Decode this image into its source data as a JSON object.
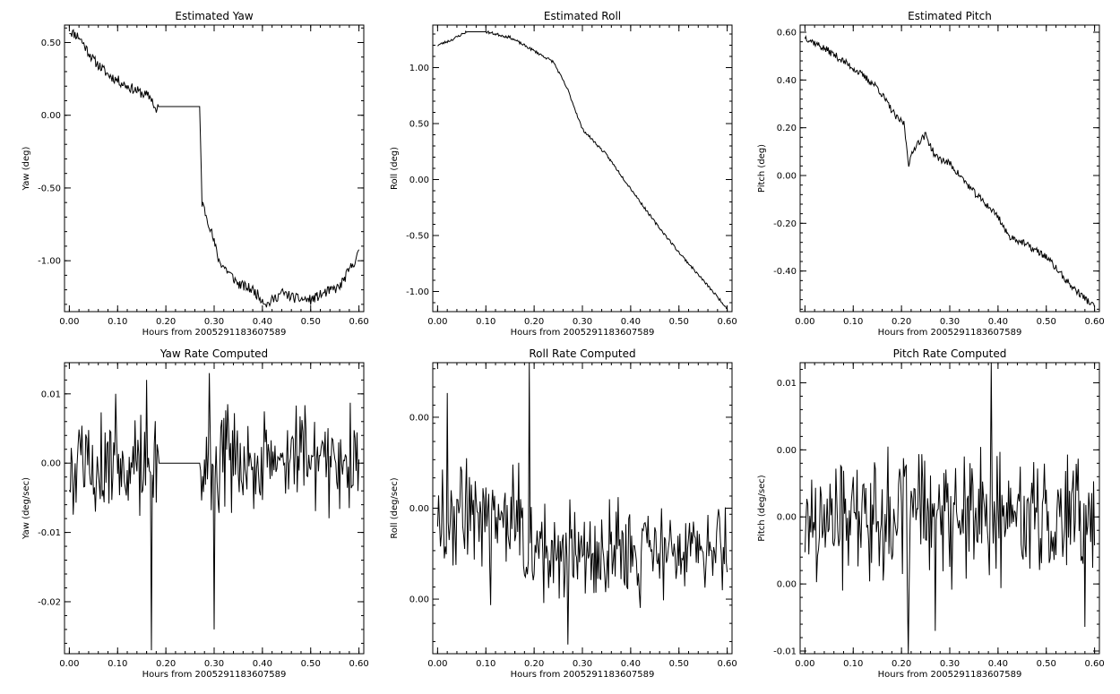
{
  "figure": {
    "background": "#ffffff",
    "line_color": "#000000"
  },
  "chart_data": [
    {
      "id": "yaw",
      "type": "line",
      "title": "Estimated Yaw",
      "xlabel": "Hours from 2005291183607589",
      "ylabel": "Yaw (deg)",
      "xlim": [
        -0.01,
        0.61
      ],
      "ylim": [
        -1.35,
        0.62
      ],
      "xticks": [
        0.0,
        0.1,
        0.2,
        0.3,
        0.4,
        0.5,
        0.6
      ],
      "xtick_labels": [
        "0.00",
        "0.10",
        "0.20",
        "0.30",
        "0.40",
        "0.50",
        "0.60"
      ],
      "yticks": [
        0.5,
        0.0,
        -0.5,
        -1.0
      ],
      "ytick_labels": [
        "0.50",
        "0.00",
        "-0.50",
        "-1.00"
      ],
      "noise": 0.035,
      "seed": 11,
      "series": [
        {
          "values": [
            [
              0.0,
              0.58
            ],
            [
              0.02,
              0.54
            ],
            [
              0.05,
              0.38
            ],
            [
              0.08,
              0.28
            ],
            [
              0.12,
              0.2
            ],
            [
              0.17,
              0.12
            ],
            [
              0.18,
              0.02
            ],
            [
              0.185,
              0.06
            ],
            [
              0.27,
              0.06
            ],
            [
              0.275,
              -0.6
            ],
            [
              0.29,
              -0.75
            ],
            [
              0.31,
              -1.0
            ],
            [
              0.35,
              -1.16
            ],
            [
              0.38,
              -1.2
            ],
            [
              0.41,
              -1.3
            ],
            [
              0.44,
              -1.22
            ],
            [
              0.47,
              -1.26
            ],
            [
              0.5,
              -1.27
            ],
            [
              0.53,
              -1.22
            ],
            [
              0.56,
              -1.18
            ],
            [
              0.6,
              -0.95
            ]
          ]
        }
      ]
    },
    {
      "id": "roll",
      "type": "line",
      "title": "Estimated Roll",
      "xlabel": "Hours from 2005291183607589",
      "ylabel": "Roll (deg)",
      "xlim": [
        -0.01,
        0.61
      ],
      "ylim": [
        -1.18,
        1.38
      ],
      "xticks": [
        0.0,
        0.1,
        0.2,
        0.3,
        0.4,
        0.5,
        0.6
      ],
      "xtick_labels": [
        "0.00",
        "0.10",
        "0.20",
        "0.30",
        "0.40",
        "0.50",
        "0.60"
      ],
      "yticks": [
        1.0,
        0.5,
        0.0,
        -0.5,
        -1.0
      ],
      "ytick_labels": [
        "1.00",
        "0.50",
        "0.00",
        "-0.50",
        "-1.00"
      ],
      "noise": 0.012,
      "seed": 23,
      "series": [
        {
          "values": [
            [
              0.0,
              1.2
            ],
            [
              0.03,
              1.25
            ],
            [
              0.06,
              1.32
            ],
            [
              0.1,
              1.32
            ],
            [
              0.15,
              1.27
            ],
            [
              0.2,
              1.15
            ],
            [
              0.24,
              1.05
            ],
            [
              0.27,
              0.8
            ],
            [
              0.3,
              0.45
            ],
            [
              0.35,
              0.22
            ],
            [
              0.4,
              -0.08
            ],
            [
              0.45,
              -0.38
            ],
            [
              0.5,
              -0.65
            ],
            [
              0.55,
              -0.9
            ],
            [
              0.6,
              -1.15
            ]
          ]
        }
      ]
    },
    {
      "id": "pitch",
      "type": "line",
      "title": "Estimated Pitch",
      "xlabel": "Hours from 2005291183607589",
      "ylabel": "Pitch (deg)",
      "xlim": [
        -0.01,
        0.61
      ],
      "ylim": [
        -0.57,
        0.63
      ],
      "xticks": [
        0.0,
        0.1,
        0.2,
        0.3,
        0.4,
        0.5,
        0.6
      ],
      "xtick_labels": [
        "0.00",
        "0.10",
        "0.20",
        "0.30",
        "0.40",
        "0.50",
        "0.60"
      ],
      "yticks": [
        0.6,
        0.4,
        0.2,
        0.0,
        -0.2,
        -0.4
      ],
      "ytick_labels": [
        "0.60",
        "0.40",
        "0.20",
        "0.00",
        "-0.20",
        "-0.40"
      ],
      "noise": 0.015,
      "seed": 37,
      "series": [
        {
          "values": [
            [
              0.0,
              0.58
            ],
            [
              0.05,
              0.52
            ],
            [
              0.1,
              0.45
            ],
            [
              0.15,
              0.37
            ],
            [
              0.19,
              0.24
            ],
            [
              0.205,
              0.22
            ],
            [
              0.215,
              0.05
            ],
            [
              0.23,
              0.13
            ],
            [
              0.25,
              0.17
            ],
            [
              0.27,
              0.08
            ],
            [
              0.3,
              0.05
            ],
            [
              0.35,
              -0.07
            ],
            [
              0.4,
              -0.17
            ],
            [
              0.42,
              -0.25
            ],
            [
              0.45,
              -0.28
            ],
            [
              0.5,
              -0.34
            ],
            [
              0.55,
              -0.46
            ],
            [
              0.6,
              -0.55
            ]
          ]
        }
      ]
    },
    {
      "id": "yaw-rate",
      "type": "line",
      "title": "Yaw Rate Computed",
      "xlabel": "Hours from 2005291183607589",
      "ylabel": "Yaw (deg/sec)",
      "xlim": [
        -0.01,
        0.61
      ],
      "ylim": [
        -0.0275,
        0.0145
      ],
      "xticks": [
        0.0,
        0.1,
        0.2,
        0.3,
        0.4,
        0.5,
        0.6
      ],
      "xtick_labels": [
        "0.00",
        "0.10",
        "0.20",
        "0.30",
        "0.40",
        "0.50",
        "0.60"
      ],
      "yticks": [
        0.01,
        0.0,
        -0.01,
        -0.02
      ],
      "ytick_labels": [
        "0.01",
        "0.00",
        "-0.01",
        "-0.02"
      ],
      "rate_amplitude": 0.007,
      "seed": 5,
      "flat": [
        0.185,
        0.27
      ],
      "spikes": [
        [
          0.17,
          -0.027
        ],
        [
          0.29,
          0.013
        ],
        [
          0.3,
          -0.024
        ],
        [
          0.095,
          0.01
        ],
        [
          0.16,
          0.012
        ]
      ]
    },
    {
      "id": "roll-rate",
      "type": "line",
      "title": "Roll Rate Computed",
      "xlabel": "Hours from 2005291183607589",
      "ylabel": "Roll (deg/sec)",
      "xlim": [
        -0.01,
        0.61
      ],
      "ylim": [
        -0.0028,
        0.0068
      ],
      "xticks": [
        0.0,
        0.1,
        0.2,
        0.3,
        0.4,
        0.5,
        0.6
      ],
      "xtick_labels": [
        "0.00",
        "0.10",
        "0.20",
        "0.30",
        "0.40",
        "0.50",
        "0.60"
      ],
      "yticks": [
        0.005,
        0.002,
        -0.001
      ],
      "ytick_labels": [
        "0.00",
        "0.00",
        "0.00"
      ],
      "rate_amplitude": 0.0016,
      "seed": 9,
      "rate_center": 0.0018,
      "rate_center_end": 0.0006,
      "spikes": [
        [
          0.19,
          0.0068
        ],
        [
          0.27,
          -0.0025
        ],
        [
          0.02,
          0.0058
        ],
        [
          0.11,
          -0.0012
        ]
      ]
    },
    {
      "id": "pitch-rate",
      "type": "line",
      "title": "Pitch Rate Computed",
      "xlabel": "Hours from 2005291183607589",
      "ylabel": "Pitch (deg/sec)",
      "xlim": [
        -0.01,
        0.61
      ],
      "ylim": [
        -0.0102,
        0.0115
      ],
      "xticks": [
        0.0,
        0.1,
        0.2,
        0.3,
        0.4,
        0.5,
        0.6
      ],
      "xtick_labels": [
        "0.00",
        "0.10",
        "0.20",
        "0.30",
        "0.40",
        "0.50",
        "0.60"
      ],
      "yticks": [
        0.01,
        0.005,
        0.0,
        -0.005,
        -0.01
      ],
      "ytick_labels": [
        "0.01",
        "0.00",
        "0.00",
        "0.00",
        "-0.01"
      ],
      "rate_amplitude": 0.0045,
      "seed": 17,
      "spikes": [
        [
          0.215,
          -0.0102
        ],
        [
          0.385,
          0.0115
        ],
        [
          0.27,
          -0.0085
        ],
        [
          0.58,
          -0.0082
        ]
      ]
    }
  ]
}
